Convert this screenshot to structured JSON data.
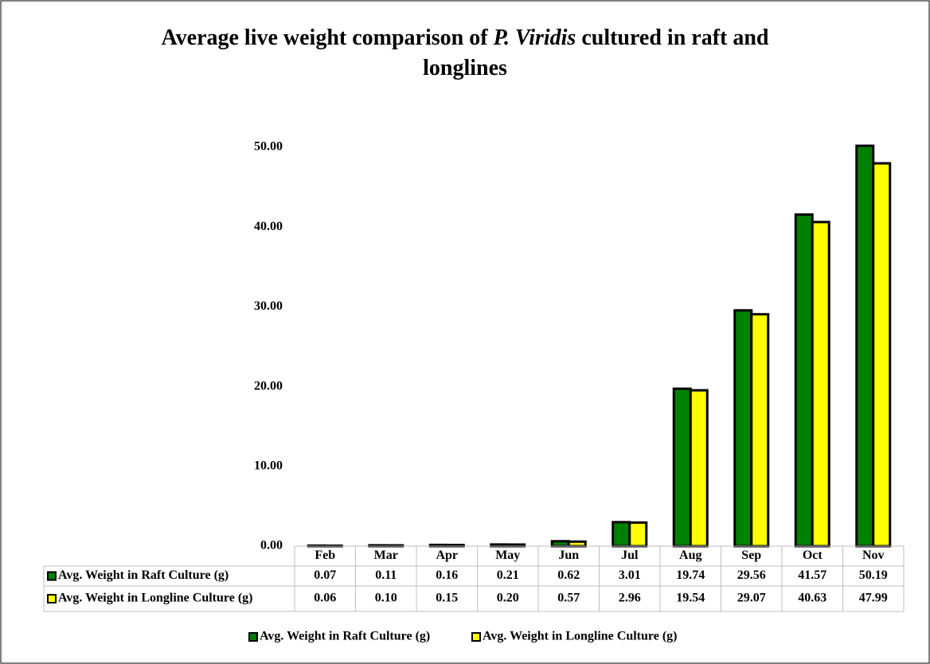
{
  "chart_data": {
    "type": "bar",
    "title": [
      "Average live weight comparison of ",
      "P. Viridis",
      " cultured in raft and",
      "longlines"
    ],
    "categories": [
      "Feb",
      "Mar",
      "Apr",
      "May",
      "Jun",
      "Jul",
      "Aug",
      "Sep",
      "Oct",
      "Nov"
    ],
    "series": [
      {
        "name": "Avg. Weight in Raft Culture (g)",
        "color": "#008000",
        "values": [
          0.07,
          0.11,
          0.16,
          0.21,
          0.62,
          3.01,
          19.74,
          29.56,
          41.57,
          50.19
        ],
        "value_labels": [
          "0.07",
          "0.11",
          "0.16",
          "0.21",
          "0.62",
          "3.01",
          "19.74",
          "29.56",
          "41.57",
          "50.19"
        ]
      },
      {
        "name": "Avg. Weight in Longline Culture (g)",
        "color": "#ffff00",
        "values": [
          0.06,
          0.1,
          0.15,
          0.2,
          0.57,
          2.96,
          19.54,
          29.07,
          40.63,
          47.99
        ],
        "value_labels": [
          "0.06",
          "0.10",
          "0.15",
          "0.20",
          "0.57",
          "2.96",
          "19.54",
          "29.07",
          "40.63",
          "47.99"
        ]
      }
    ],
    "ylim": [
      0,
      50
    ],
    "yticks": [
      {
        "value": 0,
        "label": "0.00"
      },
      {
        "value": 10,
        "label": "10.00"
      },
      {
        "value": 20,
        "label": "20.00"
      },
      {
        "value": 30,
        "label": "30.00"
      },
      {
        "value": 40,
        "label": "40.00"
      },
      {
        "value": 50,
        "label": "50.00"
      }
    ],
    "grid": false,
    "legend": "bottom"
  }
}
